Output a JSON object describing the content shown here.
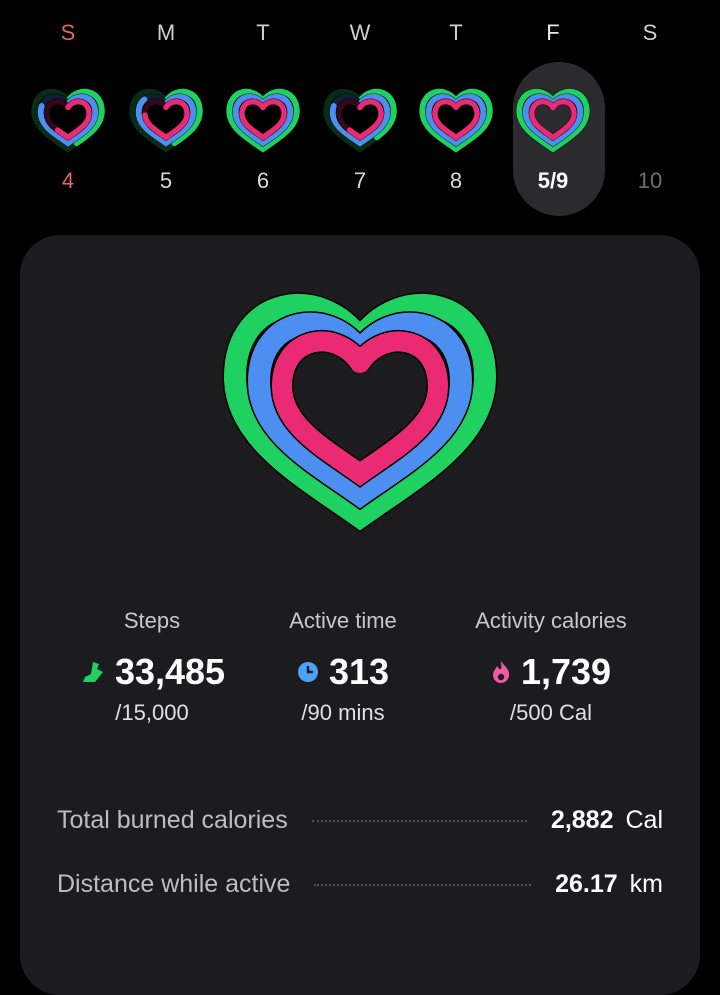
{
  "week": [
    {
      "letter": "S",
      "date": "4",
      "weekend": true,
      "rings": {
        "steps": 0.45,
        "active": 0.8,
        "calories": 0.6
      }
    },
    {
      "letter": "M",
      "date": "5",
      "rings": {
        "steps": 0.45,
        "active": 0.85,
        "calories": 0.75
      }
    },
    {
      "letter": "T",
      "date": "6",
      "rings": {
        "steps": 1,
        "active": 1,
        "calories": 1
      }
    },
    {
      "letter": "W",
      "date": "7",
      "rings": {
        "steps": 0.4,
        "active": 0.8,
        "calories": 0.6
      }
    },
    {
      "letter": "T",
      "date": "8",
      "rings": {
        "steps": 1,
        "active": 1,
        "calories": 1
      }
    },
    {
      "letter": "F",
      "date": "5/9",
      "selected": true,
      "rings": {
        "steps": 1,
        "active": 1,
        "calories": 1
      }
    },
    {
      "letter": "S",
      "date": "10",
      "future": true
    }
  ],
  "colors": {
    "steps": "#1fd160",
    "active": "#4c8ff0",
    "active_light": "#7fc0ff",
    "calories": "#ea2a72",
    "sunday": "#e0675c"
  },
  "stats": [
    {
      "label": "Steps",
      "value": "33,485",
      "goal": "/15,000",
      "icon": "shoe-icon"
    },
    {
      "label": "Active time",
      "value": "313",
      "goal": "/90 mins",
      "icon": "clock-icon"
    },
    {
      "label": "Activity calories",
      "value": "1,739",
      "goal": "/500 Cal",
      "icon": "flame-icon"
    }
  ],
  "details": [
    {
      "label": "Total burned calories",
      "value": "2,882",
      "unit": "Cal"
    },
    {
      "label": "Distance while active",
      "value": "26.17",
      "unit": "km"
    }
  ]
}
